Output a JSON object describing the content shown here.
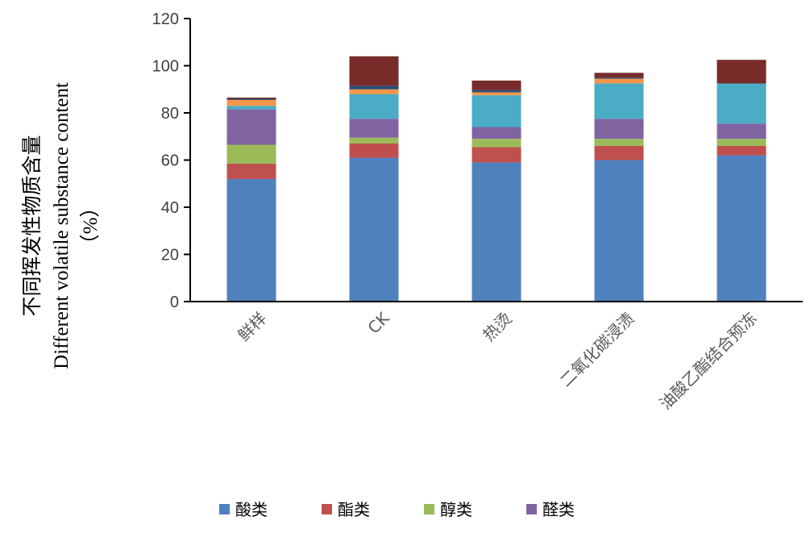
{
  "chart_data": {
    "type": "bar",
    "stacked": true,
    "categories": [
      "鲜样",
      "CK",
      "热烫",
      "二氧化碳浸渍",
      "油酸乙酯结合预冻"
    ],
    "ylabel_lines": [
      "不同挥发性物质含量",
      "Different volatile substance content",
      "（%）"
    ],
    "ylim": [
      0,
      120
    ],
    "yticks": [
      0,
      20,
      40,
      60,
      80,
      100,
      120
    ],
    "grid": false,
    "legend_position": "bottom",
    "series": [
      {
        "name": "酸类",
        "color": "#4f81bd",
        "values": [
          52,
          61,
          59,
          60,
          62
        ]
      },
      {
        "name": "酯类",
        "color": "#c0504d",
        "values": [
          6.5,
          6,
          6.5,
          6,
          4
        ]
      },
      {
        "name": "醇类",
        "color": "#9bbb59",
        "values": [
          8,
          2.5,
          3.5,
          3,
          3
        ]
      },
      {
        "name": "醛类",
        "color": "#8064a2",
        "values": [
          15,
          8,
          5,
          8.5,
          6.5
        ]
      },
      {
        "color": "#4bacc6",
        "values": [
          1.5,
          10.5,
          13.5,
          15,
          17
        ]
      },
      {
        "color": "#f79646",
        "values": [
          2.5,
          2,
          1.2,
          2,
          0
        ]
      },
      {
        "color": "#2c4d75",
        "values": [
          0.5,
          1.5,
          1,
          0.5,
          0
        ]
      },
      {
        "color": "#772c2a",
        "values": [
          0.5,
          12.5,
          4,
          2,
          10
        ]
      }
    ]
  }
}
